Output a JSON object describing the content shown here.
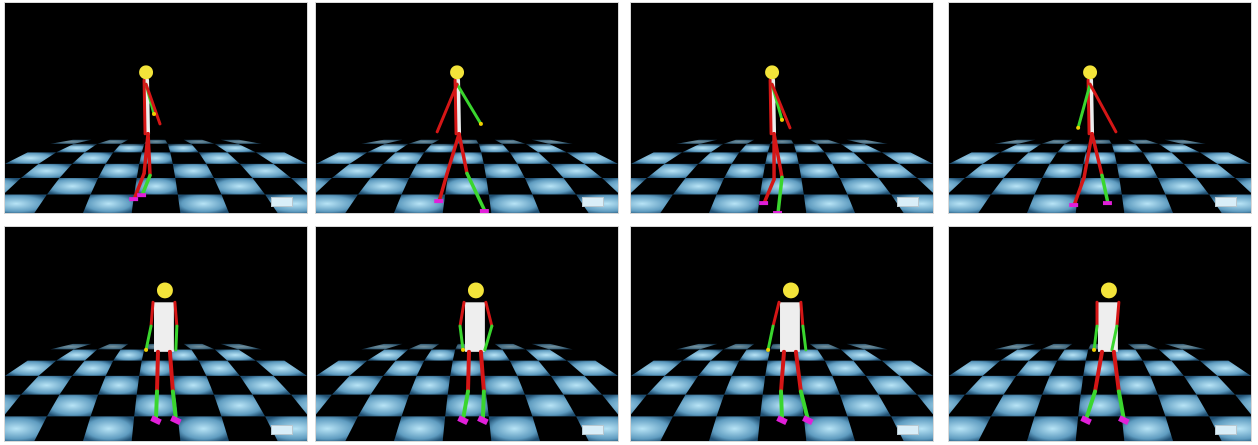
{
  "figure": {
    "panel_count": 8,
    "rows": 2,
    "columns": 4,
    "scene_background": "#000000",
    "floor_colors": {
      "light": "#b8e4f6",
      "mid": "#5f9cc0",
      "dark": "#1f4f72"
    },
    "skeleton_colors": {
      "head": "#f3e43a",
      "torso": "#eeeeee",
      "left_limb": "#d51616",
      "right_limb": "#3ad62e",
      "feet": "#e11fd9",
      "joints": "#f0d000"
    },
    "badge_color": "#d9eef8"
  },
  "panels": [
    {
      "name": "panel-1",
      "view": "side"
    },
    {
      "name": "panel-2",
      "view": "side"
    },
    {
      "name": "panel-3",
      "view": "side"
    },
    {
      "name": "panel-4",
      "view": "side"
    },
    {
      "name": "panel-5",
      "view": "front"
    },
    {
      "name": "panel-6",
      "view": "front"
    },
    {
      "name": "panel-7",
      "view": "front"
    },
    {
      "name": "panel-8",
      "view": "front"
    }
  ]
}
